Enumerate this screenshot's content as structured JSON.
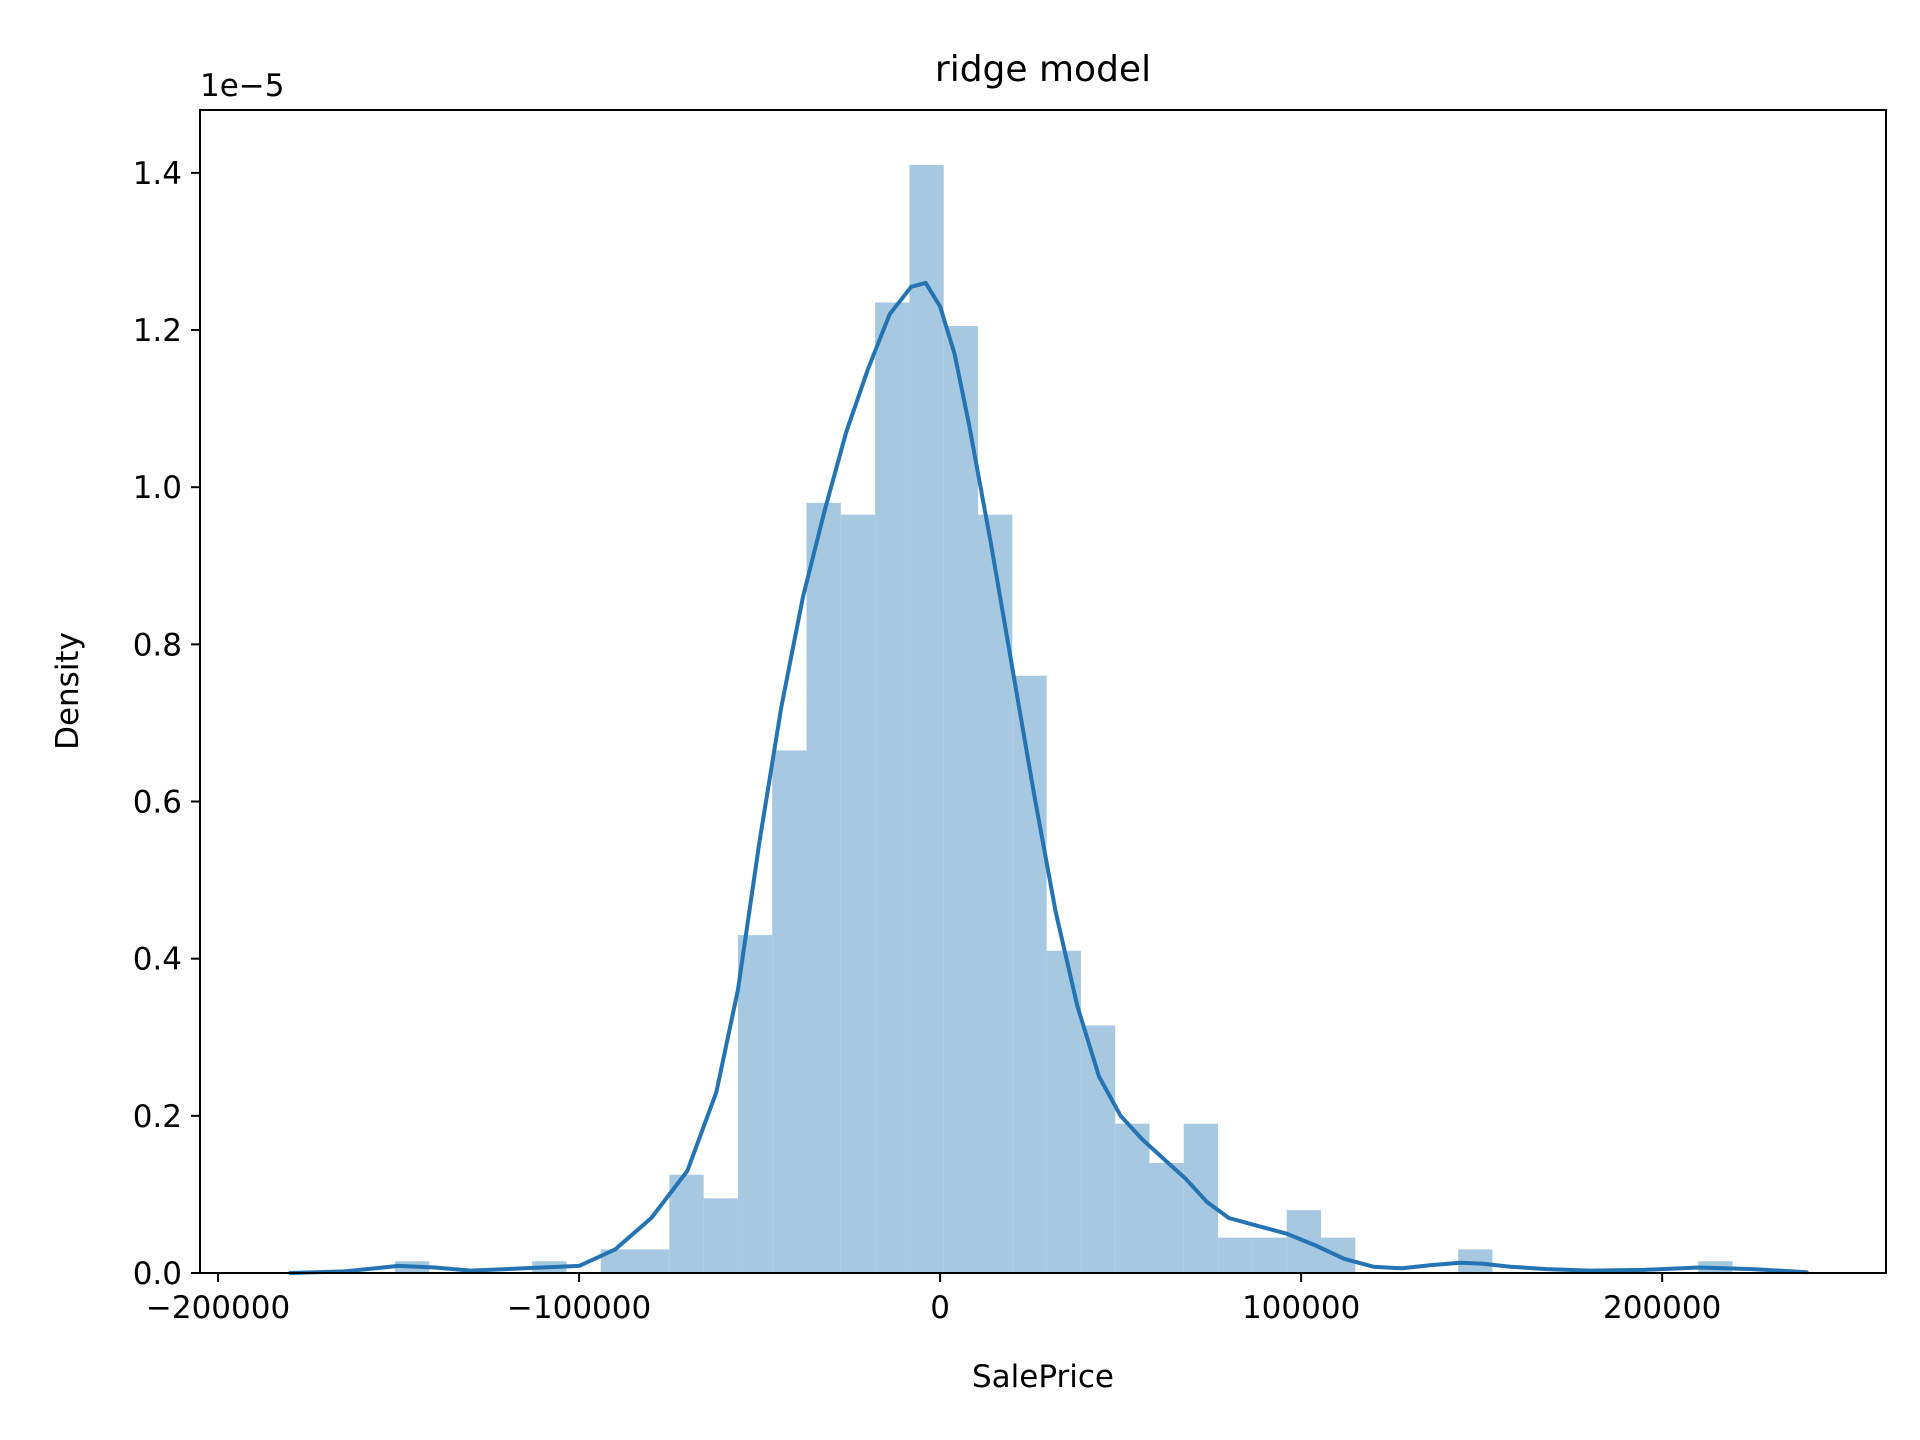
{
  "chart_data": {
    "type": "histogram",
    "title": "ridge model",
    "xlabel": "SalePrice",
    "ylabel": "Density",
    "y_offset_text": "1e−5",
    "y_scale": 1e-05,
    "xlim": [
      -205000,
      262000
    ],
    "ylim": [
      0,
      1.48
    ],
    "x_ticks": [
      -200000,
      -100000,
      0,
      100000,
      200000
    ],
    "x_tick_labels": [
      "−200000",
      "−100000",
      "0",
      "100000",
      "200000"
    ],
    "y_ticks": [
      0.0,
      0.2,
      0.4,
      0.6,
      0.8,
      1.0,
      1.2,
      1.4
    ],
    "y_tick_labels": [
      "0.0",
      "0.2",
      "0.4",
      "0.6",
      "0.8",
      "1.0",
      "1.2",
      "1.4"
    ],
    "bins": {
      "edges": [
        -151000,
        -141500,
        -132000,
        -122500,
        -113000,
        -103500,
        -94000,
        -84500,
        -75000,
        -65500,
        -56000,
        -46500,
        -37000,
        -27500,
        -18000,
        -8500,
        1000,
        10500,
        20000,
        29500,
        39000,
        48500,
        58000,
        67500,
        77000,
        86500,
        96000,
        105500,
        115000,
        124500,
        134000,
        143500,
        153000,
        162500,
        172000,
        181500,
        191000,
        200500,
        210000,
        219500
      ],
      "densities": [
        0.015,
        0,
        0,
        0,
        0.015,
        0,
        0.03,
        0.03,
        0.125,
        0.095,
        0.43,
        0.665,
        0.98,
        0.965,
        1.235,
        1.41,
        1.205,
        0.965,
        0.76,
        0.41,
        0.315,
        0.19,
        0.14,
        0.19,
        0.045,
        0.045,
        0.08,
        0.045,
        0,
        0,
        0,
        0.03,
        0,
        0,
        0,
        0,
        0,
        0,
        0.015
      ]
    },
    "kde": {
      "x": [
        -180000,
        -165000,
        -150000,
        -140000,
        -130000,
        -115000,
        -100000,
        -90000,
        -80000,
        -70000,
        -62000,
        -56000,
        -50000,
        -44000,
        -38000,
        -32000,
        -26000,
        -20000,
        -14000,
        -8000,
        -4000,
        0,
        4000,
        8000,
        14000,
        20000,
        26000,
        32000,
        38000,
        44000,
        50000,
        56000,
        62000,
        68000,
        74000,
        80000,
        88000,
        96000,
        104000,
        112000,
        120000,
        128000,
        136000,
        144000,
        150000,
        158000,
        168000,
        180000,
        195000,
        210000,
        225000,
        240000
      ],
      "y": [
        0.0,
        0.002,
        0.009,
        0.007,
        0.003,
        0.006,
        0.009,
        0.03,
        0.07,
        0.13,
        0.23,
        0.36,
        0.55,
        0.72,
        0.86,
        0.97,
        1.07,
        1.15,
        1.22,
        1.255,
        1.26,
        1.23,
        1.17,
        1.08,
        0.93,
        0.77,
        0.61,
        0.46,
        0.34,
        0.25,
        0.2,
        0.17,
        0.145,
        0.12,
        0.09,
        0.07,
        0.06,
        0.05,
        0.035,
        0.018,
        0.008,
        0.006,
        0.01,
        0.013,
        0.012,
        0.008,
        0.005,
        0.003,
        0.004,
        0.007,
        0.005,
        0.001
      ]
    },
    "bar_color": "#a6c8e1",
    "line_color": "#2473b3",
    "grid": false,
    "legend": "none"
  }
}
